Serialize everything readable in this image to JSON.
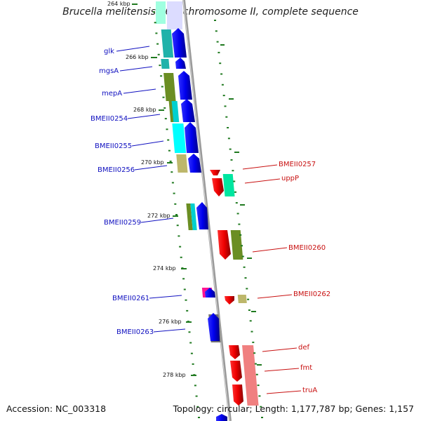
{
  "title": "Brucella melitensis 16M chromosome II, complete sequence",
  "footer": {
    "accession": "Accession: NC_003318",
    "stats": "Topology: circular; Length: 1,177,787 bp; Genes: 1,157"
  },
  "colors": {
    "forward_label": "#1010c0",
    "reverse_label": "#c81010",
    "backbone": "#9a9a9a",
    "tick": "#207a20",
    "forward_arrow": "#0000ee",
    "reverse_arrow": "#ee0000"
  },
  "kbp_labels": [
    "264 kbp",
    "266 kbp",
    "268 kbp",
    "270 kbp",
    "272 kbp",
    "274 kbp",
    "276 kbp",
    "278 kbp"
  ],
  "forward_genes": [
    "glk",
    "mgsA",
    "mepA",
    "BMEII0254",
    "BMEII0255",
    "BMEII0256",
    "BMEII0259",
    "BMEII0261",
    "BMEII0263"
  ],
  "reverse_genes": [
    "BMEII0257",
    "uppP",
    "BMEII0260",
    "BMEII0262",
    "def",
    "fmt",
    "truA"
  ]
}
